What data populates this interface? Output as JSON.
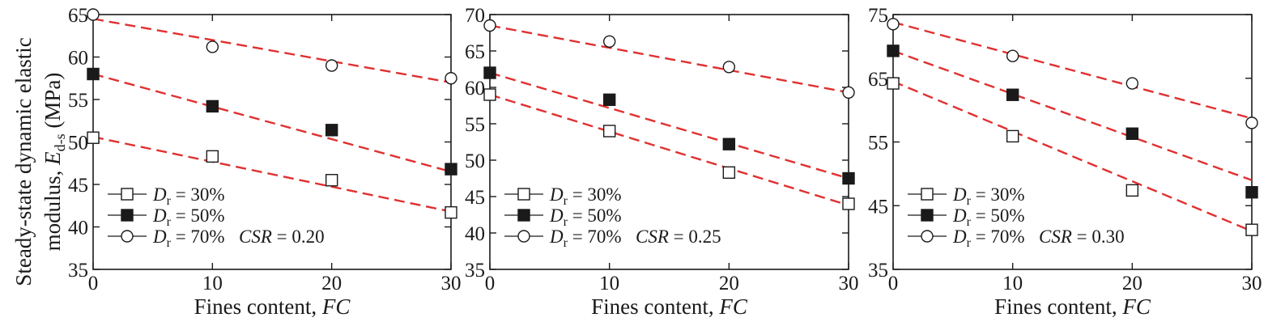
{
  "figure": {
    "ylabel_main": "Steady-state dynamic elastic",
    "ylabel_second": "modulus, ",
    "ylabel_symbol": "E",
    "ylabel_subscript": "d-s",
    "ylabel_unit": " (MPa)",
    "xlabel_text": "Fines content, ",
    "xlabel_symbol": "FC"
  },
  "legend_entries": [
    {
      "symbol": "D",
      "subscript": "r",
      "text": " = 30%",
      "marker": "open-square"
    },
    {
      "symbol": "D",
      "subscript": "r",
      "text": " = 50%",
      "marker": "filled-square"
    },
    {
      "symbol": "D",
      "subscript": "r",
      "text": " = 70%",
      "marker": "open-circle"
    }
  ],
  "colors": {
    "fit_line": "#e03030",
    "marker_edge": "#1a1a1a",
    "marker_fill": "#1a1a1a",
    "background": "#ffffff"
  },
  "chart_data": [
    {
      "type": "scatter",
      "csr_label": "CSR",
      "csr_value": " = 0.20",
      "xlim": [
        0,
        30
      ],
      "ylim": [
        35,
        65
      ],
      "xticks": [
        0,
        10,
        20,
        30
      ],
      "yticks": [
        35,
        40,
        45,
        50,
        55,
        60,
        65
      ],
      "legend_position": "bottom-left",
      "series": [
        {
          "key": "D30",
          "marker": "open-square",
          "x": [
            0,
            10,
            20,
            30
          ],
          "y": [
            50.5,
            48.3,
            45.5,
            41.7
          ],
          "fit": [
            50.6,
            41.8
          ]
        },
        {
          "key": "D50",
          "marker": "filled-square",
          "x": [
            0,
            10,
            20,
            30
          ],
          "y": [
            58.0,
            54.2,
            51.4,
            46.8
          ],
          "fit": [
            58.0,
            46.5
          ]
        },
        {
          "key": "D70",
          "marker": "open-circle",
          "x": [
            0,
            10,
            20,
            30
          ],
          "y": [
            65.0,
            61.2,
            59.0,
            57.5
          ],
          "fit": [
            64.5,
            57.0
          ]
        }
      ]
    },
    {
      "type": "scatter",
      "csr_label": "CSR",
      "csr_value": " = 0.25",
      "xlim": [
        0,
        30
      ],
      "ylim": [
        35,
        70
      ],
      "xticks": [
        0,
        10,
        20,
        30
      ],
      "yticks": [
        35,
        40,
        45,
        50,
        55,
        60,
        65,
        70
      ],
      "legend_position": "bottom-left",
      "series": [
        {
          "key": "D30",
          "marker": "open-square",
          "x": [
            0,
            10,
            20,
            30
          ],
          "y": [
            59.0,
            54.0,
            48.3,
            44.0
          ],
          "fit": [
            59.0,
            43.8
          ]
        },
        {
          "key": "D50",
          "marker": "filled-square",
          "x": [
            0,
            10,
            20,
            30
          ],
          "y": [
            62.0,
            58.3,
            52.2,
            47.5
          ],
          "fit": [
            62.0,
            47.5
          ]
        },
        {
          "key": "D70",
          "marker": "open-circle",
          "x": [
            0,
            10,
            20,
            30
          ],
          "y": [
            68.5,
            66.3,
            62.8,
            59.3
          ],
          "fit": [
            68.5,
            59.3
          ]
        }
      ]
    },
    {
      "type": "scatter",
      "csr_label": "CSR",
      "csr_value": " = 0.30",
      "xlim": [
        0,
        30
      ],
      "ylim": [
        35,
        75
      ],
      "xticks": [
        0,
        10,
        20,
        30
      ],
      "yticks": [
        35,
        45,
        55,
        65,
        75
      ],
      "legend_position": "bottom-left",
      "series": [
        {
          "key": "D30",
          "marker": "open-square",
          "x": [
            0,
            10,
            20,
            30
          ],
          "y": [
            64.2,
            55.9,
            47.4,
            41.2
          ],
          "fit": [
            64.5,
            41.0
          ]
        },
        {
          "key": "D50",
          "marker": "filled-square",
          "x": [
            0,
            10,
            20,
            30
          ],
          "y": [
            69.3,
            62.4,
            56.3,
            47.1
          ],
          "fit": [
            69.3,
            49.0
          ]
        },
        {
          "key": "D70",
          "marker": "open-circle",
          "x": [
            0,
            10,
            20,
            30
          ],
          "y": [
            73.5,
            68.5,
            64.2,
            58.0
          ],
          "fit": [
            73.8,
            58.7
          ]
        }
      ]
    }
  ]
}
